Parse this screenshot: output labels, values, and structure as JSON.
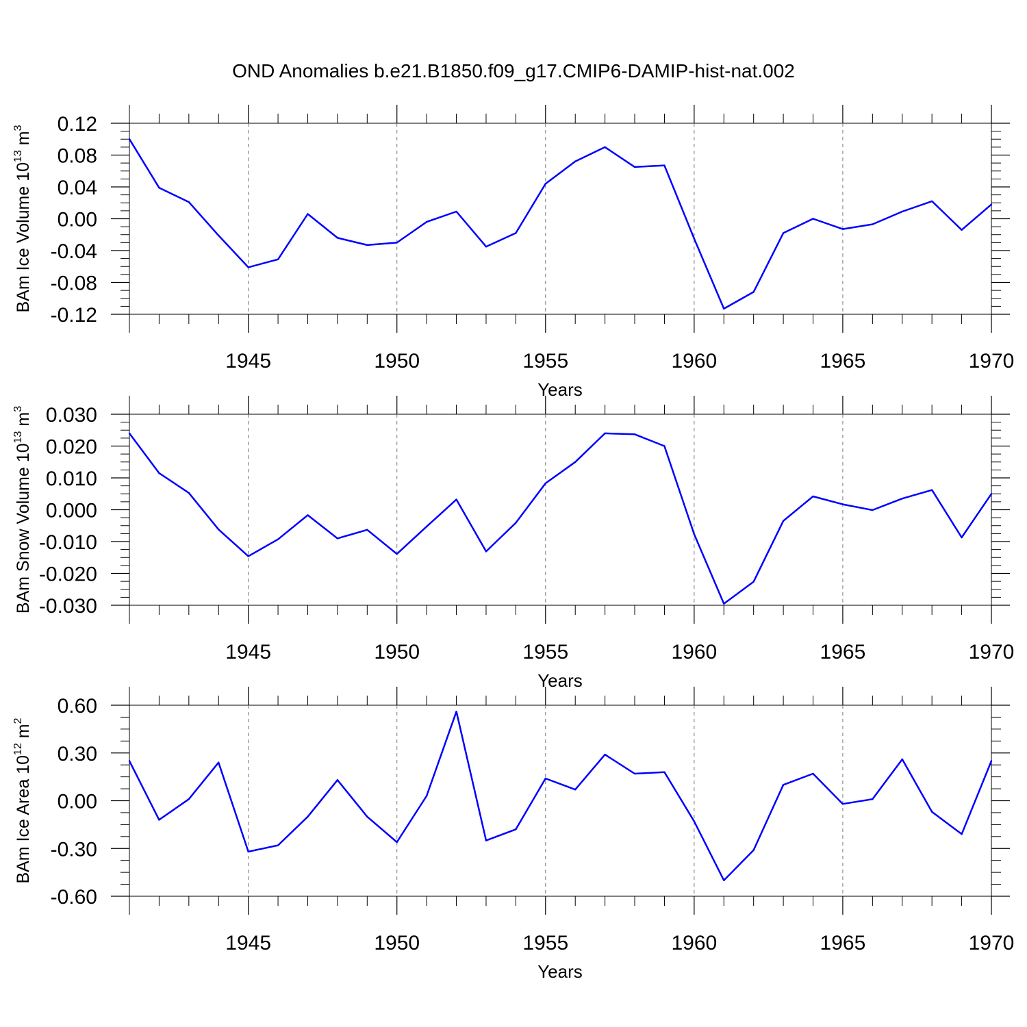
{
  "title": "OND Anomalies b.e21.B1850.f09_g17.CMIP6-DAMIP-hist-nat.002",
  "colors": {
    "series": "#0000ff",
    "axis": "#000000",
    "grid": "#777777"
  },
  "chart_data": [
    {
      "type": "line",
      "ylabel": {
        "text": "BAm Ice Volume 10",
        "sup": "13",
        "unit": " m",
        "unit_sup": "3"
      },
      "xlabel": "Years",
      "xlim": [
        1941,
        1970
      ],
      "ylim": [
        -0.12,
        0.12
      ],
      "xticks": [
        "1945",
        "1950",
        "1955",
        "1960",
        "1965",
        "1970"
      ],
      "yticks": [
        "0.12",
        "0.08",
        "0.04",
        "0.00",
        "-0.04",
        "-0.08",
        "-0.12"
      ],
      "grid": "vertical dashed at major x ticks",
      "x": [
        1941,
        1942,
        1943,
        1944,
        1945,
        1946,
        1947,
        1948,
        1949,
        1950,
        1951,
        1952,
        1953,
        1954,
        1955,
        1956,
        1957,
        1958,
        1959,
        1960,
        1961,
        1962,
        1963,
        1964,
        1965,
        1966,
        1967,
        1968,
        1969,
        1970
      ],
      "values": [
        0.1,
        0.039,
        0.021,
        -0.021,
        -0.061,
        -0.051,
        0.006,
        -0.024,
        -0.033,
        -0.03,
        -0.004,
        0.009,
        -0.035,
        -0.018,
        0.044,
        0.072,
        0.09,
        0.065,
        0.067,
        -0.025,
        -0.113,
        -0.092,
        -0.018,
        0.0,
        -0.013,
        -0.007,
        0.009,
        0.022,
        -0.014,
        0.018
      ]
    },
    {
      "type": "line",
      "ylabel": {
        "text": "BAm Snow Volume 10",
        "sup": "13",
        "unit": " m",
        "unit_sup": "3"
      },
      "xlabel": "Years",
      "xlim": [
        1941,
        1970
      ],
      "ylim": [
        -0.03,
        0.03
      ],
      "xticks": [
        "1945",
        "1950",
        "1955",
        "1960",
        "1965",
        "1970"
      ],
      "yticks": [
        "0.030",
        "0.020",
        "0.010",
        "0.000",
        "-0.010",
        "-0.020",
        "-0.030"
      ],
      "grid": "vertical dashed at major x ticks",
      "x": [
        1941,
        1942,
        1943,
        1944,
        1945,
        1946,
        1947,
        1948,
        1949,
        1950,
        1951,
        1952,
        1953,
        1954,
        1955,
        1956,
        1957,
        1958,
        1959,
        1960,
        1961,
        1962,
        1963,
        1964,
        1965,
        1966,
        1967,
        1968,
        1969,
        1970
      ],
      "values": [
        0.024,
        0.0115,
        0.0053,
        -0.0062,
        -0.0146,
        -0.0093,
        -0.0017,
        -0.009,
        -0.0063,
        -0.0139,
        -0.0053,
        0.0032,
        -0.0131,
        -0.0041,
        0.0083,
        0.015,
        0.024,
        0.0237,
        0.02,
        -0.0077,
        -0.0295,
        -0.0226,
        -0.0035,
        0.0042,
        0.0017,
        -0.0001,
        0.0035,
        0.0062,
        -0.0087,
        0.005
      ]
    },
    {
      "type": "line",
      "ylabel": {
        "text": "BAm Ice Area 10",
        "sup": "12",
        "unit": " m",
        "unit_sup": "2"
      },
      "xlabel": "Years",
      "xlim": [
        1941,
        1970
      ],
      "ylim": [
        -0.6,
        0.6
      ],
      "xticks": [
        "1945",
        "1950",
        "1955",
        "1960",
        "1965",
        "1970"
      ],
      "yticks": [
        "0.60",
        "0.30",
        "0.00",
        "-0.30",
        "-0.60"
      ],
      "grid": "vertical dashed at major x ticks",
      "x": [
        1941,
        1942,
        1943,
        1944,
        1945,
        1946,
        1947,
        1948,
        1949,
        1950,
        1951,
        1952,
        1953,
        1954,
        1955,
        1956,
        1957,
        1958,
        1959,
        1960,
        1961,
        1962,
        1963,
        1964,
        1965,
        1966,
        1967,
        1968,
        1969,
        1970
      ],
      "values": [
        0.25,
        -0.12,
        0.01,
        0.24,
        -0.32,
        -0.28,
        -0.1,
        0.13,
        -0.1,
        -0.26,
        0.03,
        0.56,
        -0.25,
        -0.18,
        0.14,
        0.07,
        0.29,
        0.17,
        0.18,
        -0.13,
        -0.5,
        -0.31,
        0.1,
        0.17,
        -0.02,
        0.01,
        0.26,
        -0.07,
        -0.21,
        0.25
      ]
    }
  ]
}
